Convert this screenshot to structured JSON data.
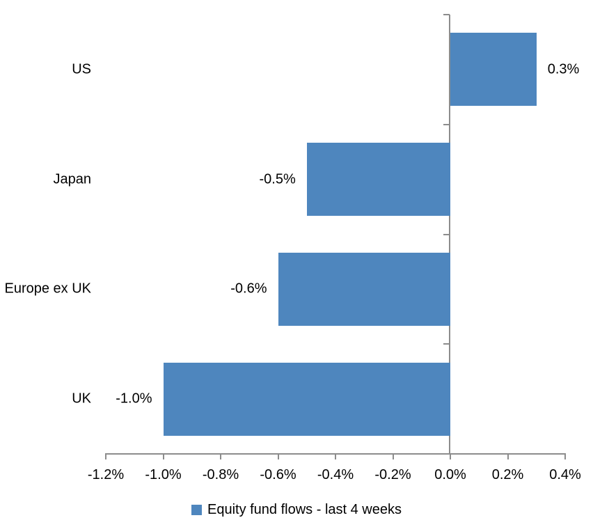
{
  "chart_data": {
    "type": "bar",
    "orientation": "horizontal",
    "title": "",
    "xlabel": "",
    "ylabel": "",
    "categories": [
      "US",
      "Japan",
      "Europe ex UK",
      "UK"
    ],
    "series": [
      {
        "name": "Equity fund flows - last 4 weeks",
        "values": [
          0.3,
          -0.5,
          -0.6,
          -1.0
        ],
        "data_labels": [
          "0.3%",
          "-0.5%",
          "-0.6%",
          "-1.0%"
        ],
        "color": "#4E86BE"
      }
    ],
    "xlim": [
      -1.2,
      0.4
    ],
    "x_tick_values": [
      -1.2,
      -1.0,
      -0.8,
      -0.6,
      -0.4,
      -0.2,
      0.0,
      0.2,
      0.4
    ],
    "x_tick_labels": [
      "-1.2%",
      "-1.0%",
      "-0.8%",
      "-0.6%",
      "-0.4%",
      "-0.2%",
      "0.0%",
      "0.2%",
      "0.4%"
    ],
    "grid": false,
    "legend_position": "bottom",
    "axis_color": "#8C8C8C",
    "text_color": "#000000",
    "background_color": "#FFFFFF"
  },
  "legend": {
    "label": "Equity fund flows - last 4 weeks",
    "swatch_color": "#4E86BE"
  }
}
